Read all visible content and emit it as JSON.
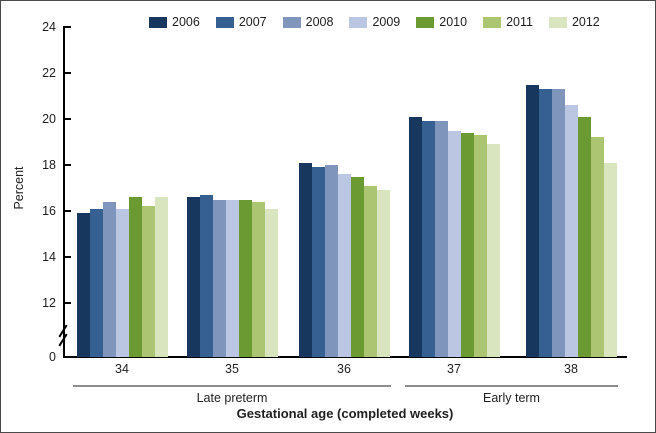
{
  "figure": {
    "ylabel": "Percent",
    "xlabel": "Gestational age (completed weeks)"
  },
  "chart_data": {
    "type": "bar",
    "title": "",
    "ylabel": "Percent",
    "xlabel": "Gestational age (completed weeks)",
    "legend_position": "top",
    "grid": false,
    "axis_break_between": [
      0,
      12
    ],
    "ylim_display": [
      12,
      24
    ],
    "yticks": [
      0,
      12,
      14,
      16,
      18,
      20,
      22,
      24
    ],
    "categories": [
      "34",
      "35",
      "36",
      "37",
      "38"
    ],
    "category_groups": [
      {
        "label": "Late preterm",
        "category_indexes": [
          0,
          1,
          2
        ]
      },
      {
        "label": "Early term",
        "category_indexes": [
          3,
          4
        ]
      }
    ],
    "series": [
      {
        "name": "2006",
        "color": "#17375E",
        "values": [
          15.9,
          16.6,
          18.1,
          20.1,
          21.5
        ]
      },
      {
        "name": "2007",
        "color": "#376092",
        "values": [
          16.1,
          16.7,
          17.9,
          19.9,
          21.3
        ]
      },
      {
        "name": "2008",
        "color": "#8095BC",
        "values": [
          16.4,
          16.5,
          18.0,
          19.9,
          21.3
        ]
      },
      {
        "name": "2009",
        "color": "#BAC6E2",
        "values": [
          16.1,
          16.5,
          17.6,
          19.5,
          20.6
        ]
      },
      {
        "name": "2010",
        "color": "#6A9A31",
        "values": [
          16.6,
          16.5,
          17.5,
          19.4,
          20.1
        ]
      },
      {
        "name": "2011",
        "color": "#ABC573",
        "values": [
          16.2,
          16.4,
          17.1,
          19.3,
          19.2
        ]
      },
      {
        "name": "2012",
        "color": "#D8E5BE",
        "values": [
          16.6,
          16.1,
          16.9,
          18.9,
          18.1
        ]
      }
    ]
  }
}
